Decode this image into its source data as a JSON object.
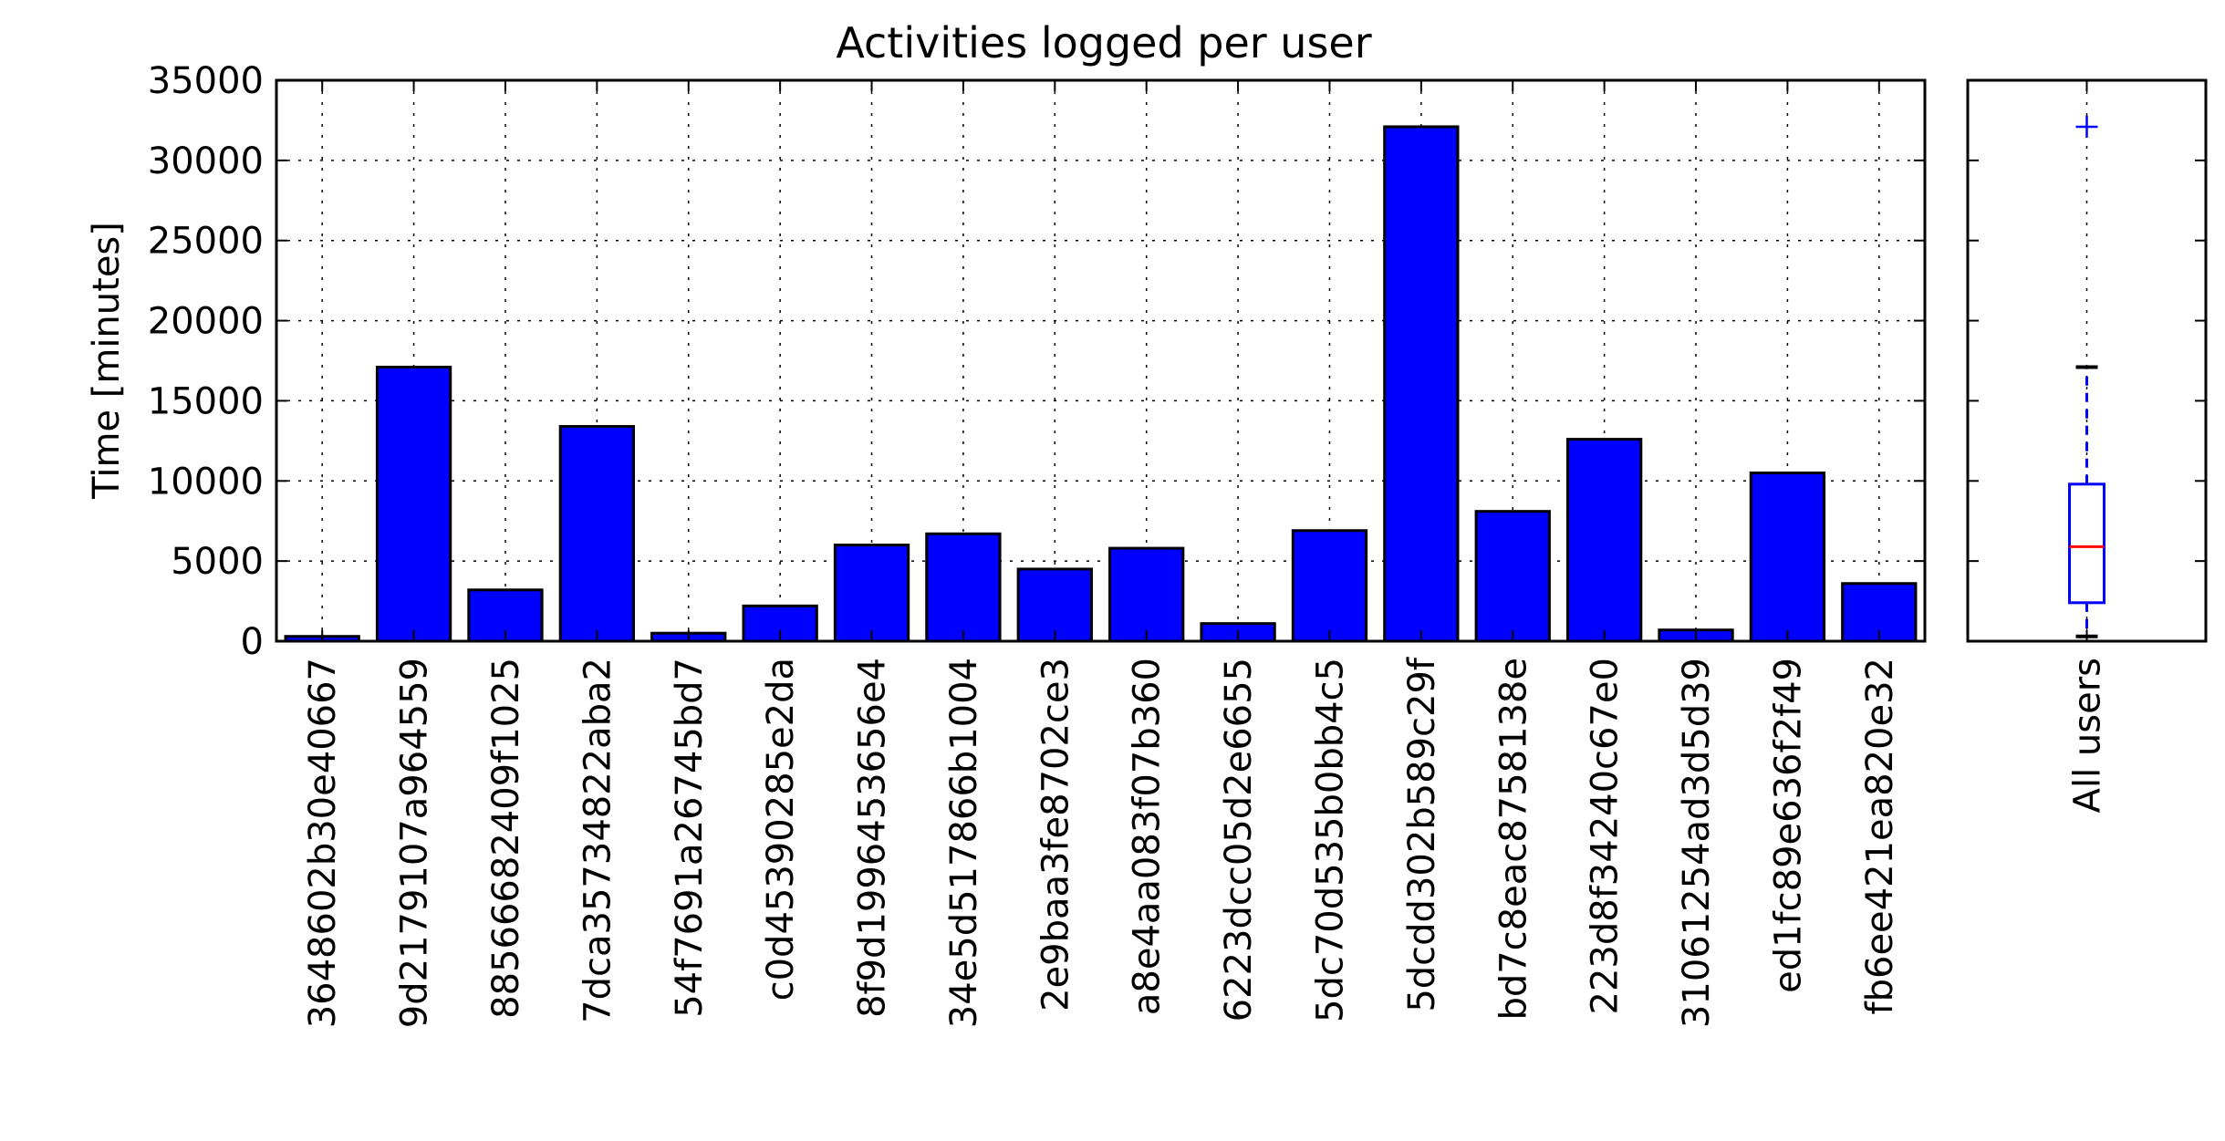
{
  "chart_data": [
    {
      "type": "bar",
      "title": "Activities logged per user",
      "xlabel": "",
      "ylabel": "Time [minutes]",
      "ylim": [
        0,
        35000
      ],
      "yticks": [
        "0",
        "5000",
        "10000",
        "15000",
        "20000",
        "25000",
        "30000",
        "35000"
      ],
      "grid": true,
      "bar_color": "#0000ff",
      "categories": [
        "3648602b30e40667",
        "9d2179107a964559",
        "8856668240 9f1025",
        "7dca35734822aba2",
        "54f7691a26745bd7",
        "c0d45390285e2da",
        "8f9d1996453656e4",
        "34e5d517866b1004",
        "2e9baa3fe8702ce3",
        "a8e4aa083f07b360",
        "6223dcc05d2e6655",
        "5dc70d535b0bb4c5",
        "5dcdd302b589c29f",
        "bd7c8eac8758138e",
        "223d8f34240c67e0",
        "31061254ad3d5d39",
        "ed1fc89e636f2f49",
        "fb6ee421ea820e32"
      ],
      "values": [
        300,
        17100,
        3200,
        13400,
        500,
        2200,
        6000,
        6700,
        4500,
        5800,
        1100,
        6900,
        32100,
        8100,
        12600,
        700,
        10500,
        3600
      ]
    },
    {
      "type": "box",
      "categories": [
        "All users"
      ],
      "ylim": [
        0,
        35000
      ],
      "grid": true,
      "box": {
        "whisker_low": 300,
        "q1": 2400,
        "median": 5900,
        "q3": 9800,
        "whisker_high": 17100,
        "outliers": [
          32100
        ]
      },
      "box_color": "#0000ff",
      "median_color": "#ff0000"
    }
  ]
}
